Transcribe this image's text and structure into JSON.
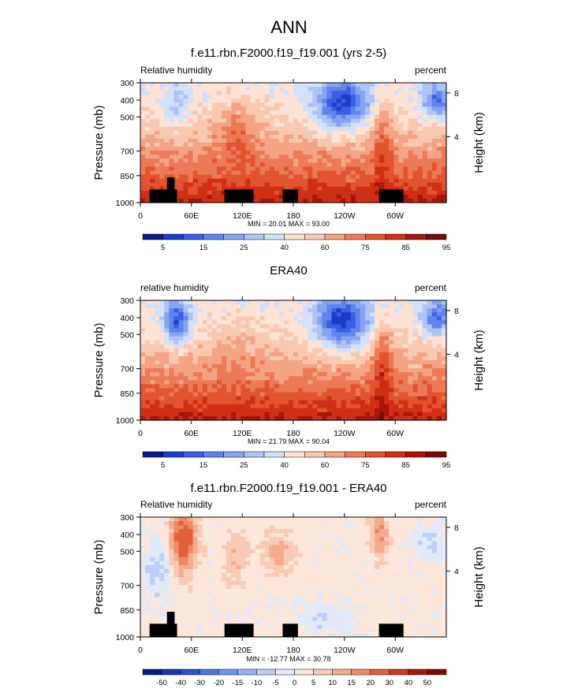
{
  "page": {
    "title": "ANN"
  },
  "chart_data": [
    {
      "type": "heatmap",
      "title": "f.e11.rbn.F2000.f19_f19.001 (yrs 2-5)",
      "left_label": "Relative humidity",
      "right_label": "percent",
      "ylabel": "Pressure (mb)",
      "y2label": "Height (km)",
      "y_ticks": [
        "300",
        "400",
        "500",
        "700",
        "850",
        "1000"
      ],
      "y2_ticks": [
        "8",
        "4"
      ],
      "x_ticks": [
        "0",
        "60E",
        "120E",
        "180",
        "120W",
        "60W"
      ],
      "stats": "MIN = 20.01  MAX = 93.00",
      "colorbar_labels": [
        "5",
        "15",
        "25",
        "40",
        "60",
        "75",
        "85",
        "95"
      ],
      "colorbar_colors": [
        "#0a1a8c",
        "#1d3ccc",
        "#3a5fe0",
        "#5f84ee",
        "#86a4f2",
        "#aec4f6",
        "#d4e0f8",
        "#fce3d6",
        "#f9c8b0",
        "#f4a384",
        "#ec7a57",
        "#e25430",
        "#cf3015",
        "#a8150a",
        "#7a0a06"
      ],
      "colorbar_type": "sequential",
      "terrain": true
    },
    {
      "type": "heatmap",
      "title": "ERA40",
      "left_label": "relative humidity",
      "right_label": "percent",
      "ylabel": "Pressure (mb)",
      "y2label": "Height (km)",
      "y_ticks": [
        "300",
        "400",
        "500",
        "700",
        "850",
        "1000"
      ],
      "y2_ticks": [
        "8",
        "4"
      ],
      "x_ticks": [
        "0",
        "60E",
        "120E",
        "180",
        "120W",
        "60W"
      ],
      "stats": "MIN = 21.79  MAX = 90.04",
      "colorbar_labels": [
        "5",
        "15",
        "25",
        "40",
        "60",
        "75",
        "85",
        "95"
      ],
      "colorbar_colors": [
        "#0a1a8c",
        "#1d3ccc",
        "#3a5fe0",
        "#5f84ee",
        "#86a4f2",
        "#aec4f6",
        "#d4e0f8",
        "#fce3d6",
        "#f9c8b0",
        "#f4a384",
        "#ec7a57",
        "#e25430",
        "#cf3015",
        "#a8150a",
        "#7a0a06"
      ],
      "colorbar_type": "sequential",
      "terrain": false
    },
    {
      "type": "heatmap",
      "title": "f.e11.rbn.F2000.f19_f19.001 - ERA40",
      "left_label": "Relative humidity",
      "right_label": "percent",
      "ylabel": "Pressure (mb)",
      "y2label": "Height (km)",
      "y_ticks": [
        "300",
        "400",
        "500",
        "700",
        "850",
        "1000"
      ],
      "y2_ticks": [
        "8",
        "4"
      ],
      "x_ticks": [
        "0",
        "60E",
        "120E",
        "180",
        "120W",
        "60W"
      ],
      "stats": "MIN = -12.77  MAX = 30.78",
      "colorbar_labels": [
        "-50",
        "-40",
        "-30",
        "-20",
        "-15",
        "-10",
        "-5",
        "0",
        "5",
        "10",
        "15",
        "20",
        "30",
        "40",
        "50"
      ],
      "colorbar_colors": [
        "#0a1a8c",
        "#1a34b8",
        "#2a50d8",
        "#4872e8",
        "#6c92f0",
        "#93b0f4",
        "#bccff7",
        "#e2eafa",
        "#fde6da",
        "#f9cbb4",
        "#f4ab8e",
        "#ec8865",
        "#e2603a",
        "#d0371a",
        "#aa170a",
        "#7a0a06"
      ],
      "colorbar_type": "diverging",
      "terrain": true
    }
  ]
}
